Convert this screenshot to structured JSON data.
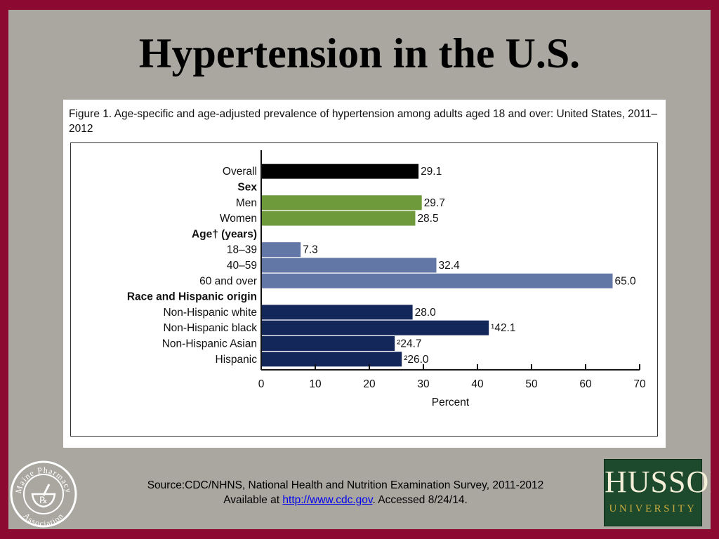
{
  "slide": {
    "title": "Hypertension in the U.S.",
    "background_color": "#8c0a32",
    "panel_color": "#a9a7a0"
  },
  "figure": {
    "caption": "Figure 1. Age-specific and age-adjusted prevalence of hypertension among adults aged 18 and over: United States, 2011–2012"
  },
  "chart_data": {
    "type": "bar",
    "orientation": "horizontal",
    "xlabel": "Percent",
    "xlim": [
      0,
      70
    ],
    "xticks": [
      0,
      10,
      20,
      30,
      40,
      50,
      60,
      70
    ],
    "rows": [
      {
        "kind": "bar",
        "label": "Overall",
        "value": 29.1,
        "value_label": "29.1",
        "color": "#000000"
      },
      {
        "kind": "header",
        "label": "Sex"
      },
      {
        "kind": "bar",
        "label": "Men",
        "value": 29.7,
        "value_label": "29.7",
        "color": "#6f9a3c"
      },
      {
        "kind": "bar",
        "label": "Women",
        "value": 28.5,
        "value_label": "28.5",
        "color": "#6f9a3c"
      },
      {
        "kind": "header",
        "label": "Age† (years)"
      },
      {
        "kind": "bar",
        "label": "18–39",
        "value": 7.3,
        "value_label": "7.3",
        "color": "#6277a6"
      },
      {
        "kind": "bar",
        "label": "40–59",
        "value": 32.4,
        "value_label": "32.4",
        "color": "#6277a6"
      },
      {
        "kind": "bar",
        "label": "60 and over",
        "value": 65.0,
        "value_label": "65.0",
        "color": "#6277a6"
      },
      {
        "kind": "header",
        "label": "Race and Hispanic origin"
      },
      {
        "kind": "bar",
        "label": "Non-Hispanic white",
        "value": 28.0,
        "value_label": "28.0",
        "color": "#13275a"
      },
      {
        "kind": "bar",
        "label": "Non-Hispanic black",
        "value": 42.1,
        "value_label": "¹42.1",
        "color": "#13275a"
      },
      {
        "kind": "bar",
        "label": "Non-Hispanic Asian",
        "value": 24.7,
        "value_label": "²24.7",
        "color": "#13275a"
      },
      {
        "kind": "bar",
        "label": "Hispanic",
        "value": 26.0,
        "value_label": "²26.0",
        "color": "#13275a"
      }
    ]
  },
  "source": {
    "line1": "Source:CDC/NHNS, National Health and Nutrition Examination Survey, 2011-2012",
    "prefix": "Available at ",
    "link": "http://www.cdc.gov",
    "suffix": ". Accessed 8/24/14."
  },
  "logos": {
    "left": {
      "text": "Maine Pharmacy Association",
      "symbol": "℞",
      "icon": "mortar-pestle-icon"
    },
    "right": {
      "name": "HUSSON",
      "sub": "UNIVERSITY",
      "color": "#1d4a2c"
    }
  }
}
